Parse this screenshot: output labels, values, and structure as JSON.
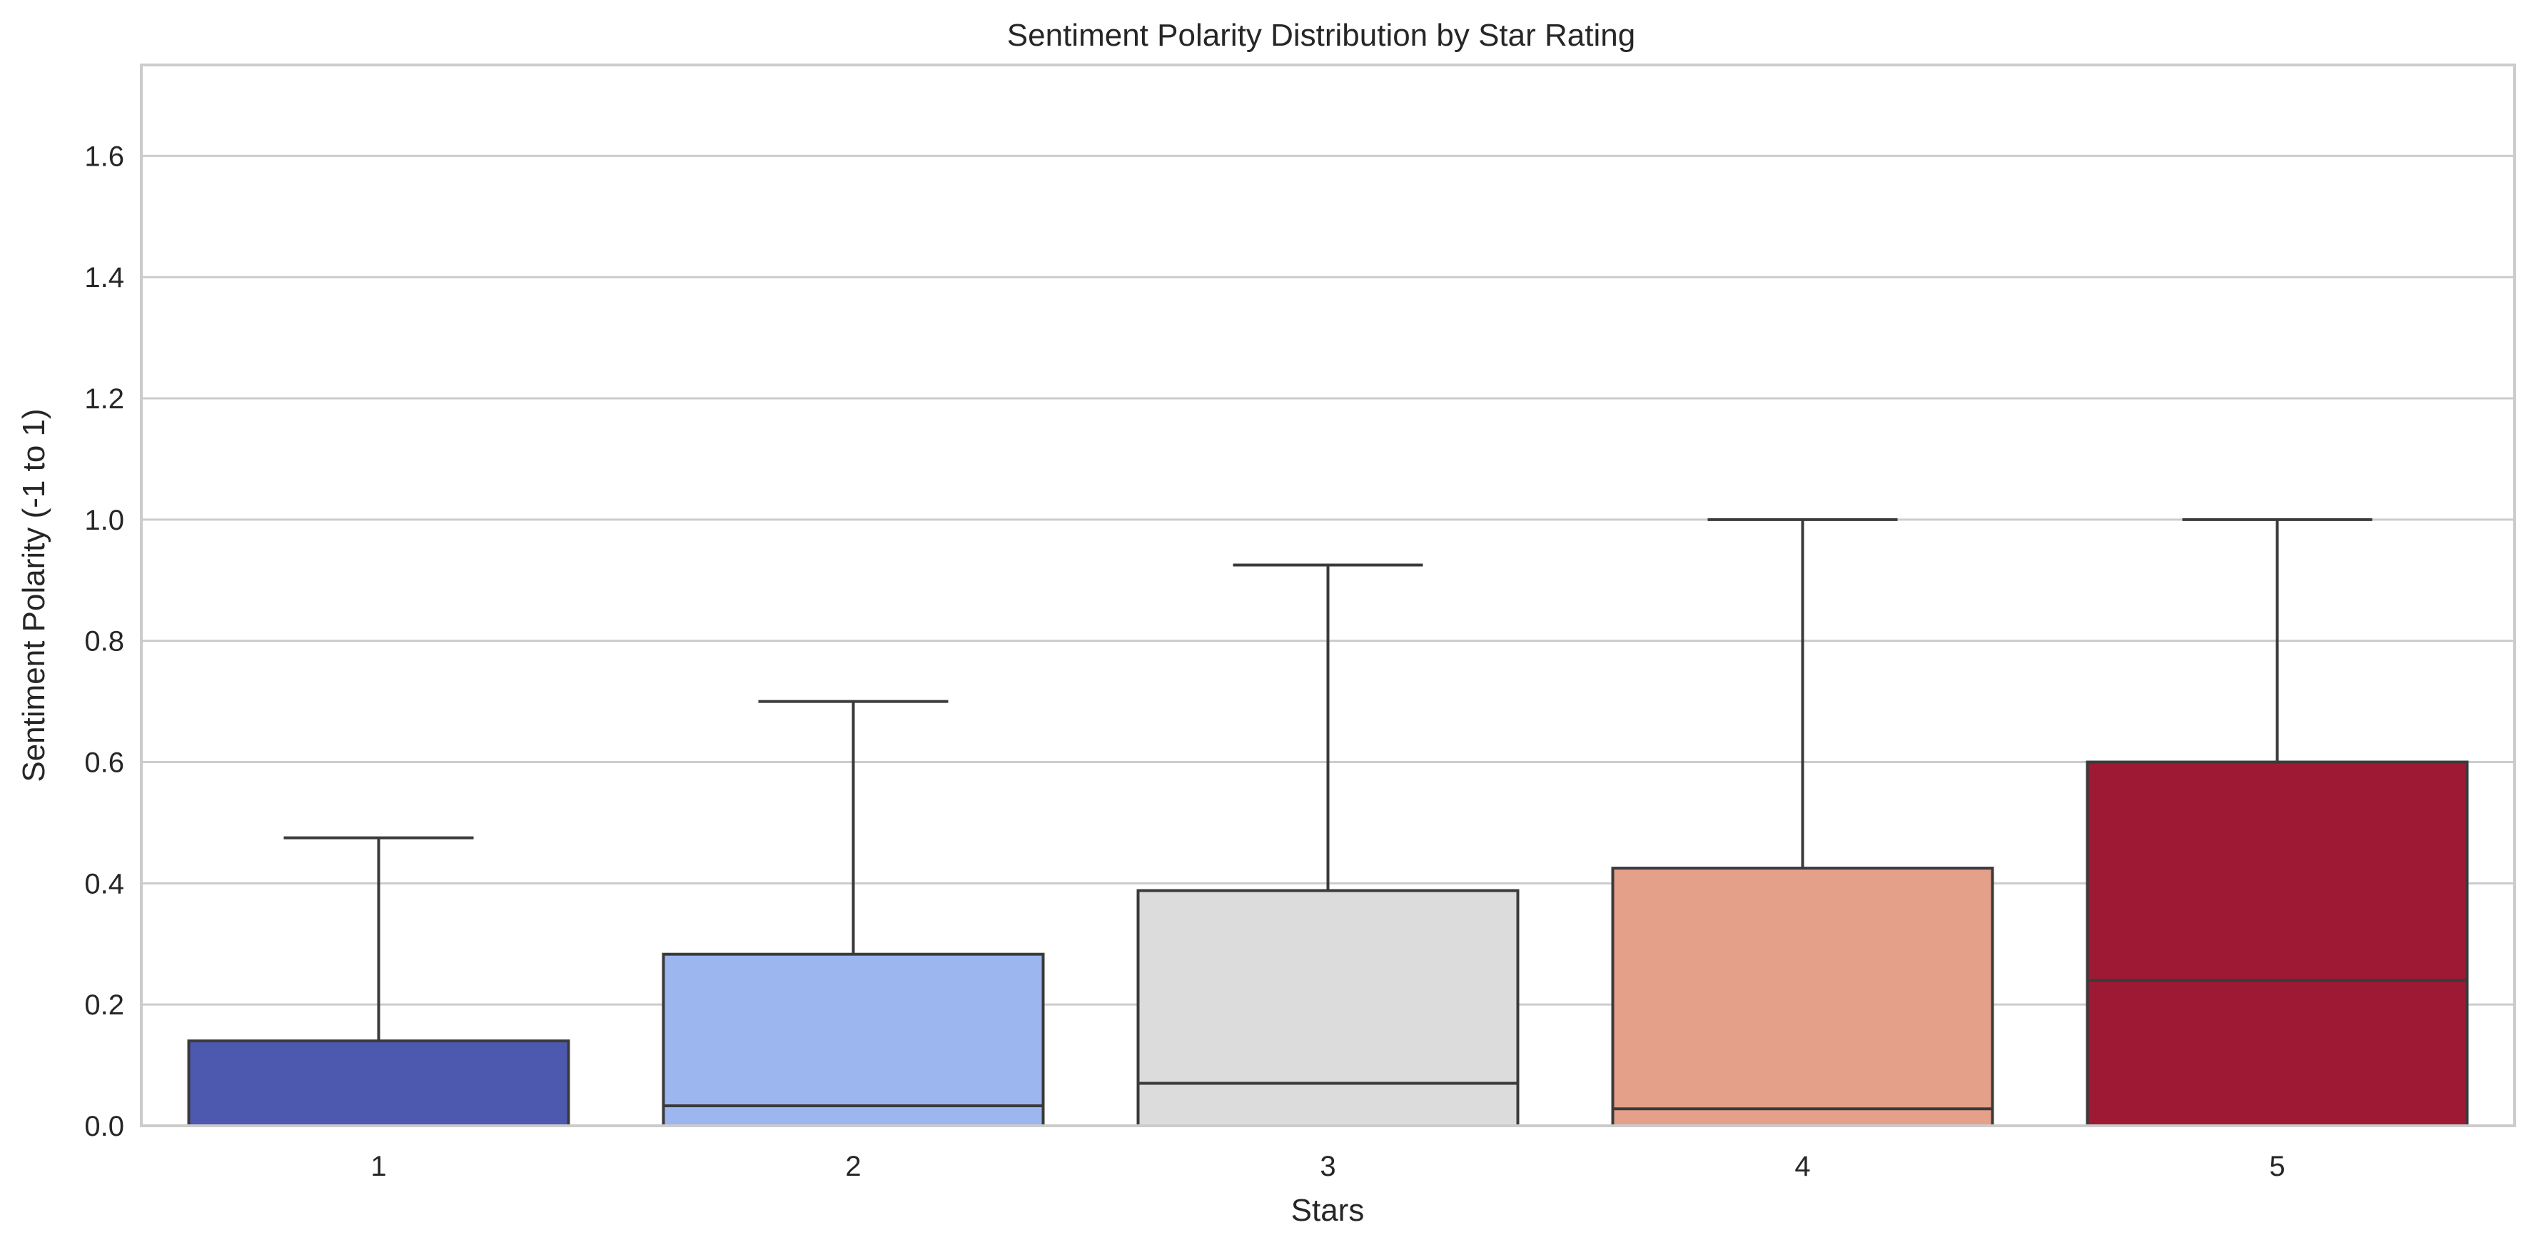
{
  "chart_data": {
    "type": "box",
    "title": "Sentiment Polarity Distribution by Star Rating",
    "xlabel": "Stars",
    "ylabel": "Sentiment Polarity (-1 to 1)",
    "ylim": [
      0,
      1.75
    ],
    "yticks": [
      0.0,
      0.2,
      0.4,
      0.6,
      0.8,
      1.0,
      1.2,
      1.4,
      1.6
    ],
    "yticklabels": [
      "0.0",
      "0.2",
      "0.4",
      "0.6",
      "0.8",
      "1.0",
      "1.2",
      "1.4",
      "1.6"
    ],
    "grid": "horizontal",
    "categories": [
      "1",
      "2",
      "3",
      "4",
      "5"
    ],
    "boxes": [
      {
        "category": "1",
        "whisker_low": 0.0,
        "q1": 0.0,
        "median": 0.0,
        "q3": 0.14,
        "whisker_high": 0.475,
        "color": "#4c59af"
      },
      {
        "category": "2",
        "whisker_low": 0.0,
        "q1": 0.0,
        "median": 0.033,
        "q3": 0.283,
        "whisker_high": 0.7,
        "color": "#9cb6f0"
      },
      {
        "category": "3",
        "whisker_low": 0.0,
        "q1": 0.0,
        "median": 0.07,
        "q3": 0.388,
        "whisker_high": 0.925,
        "color": "#dcdcdc"
      },
      {
        "category": "4",
        "whisker_low": 0.0,
        "q1": 0.0,
        "median": 0.028,
        "q3": 0.425,
        "whisker_high": 1.0,
        "color": "#e5a08a"
      },
      {
        "category": "5",
        "whisker_low": 0.0,
        "q1": 0.0,
        "median": 0.24,
        "q3": 0.6,
        "whisker_high": 1.0,
        "color": "#9e1934"
      }
    ]
  }
}
